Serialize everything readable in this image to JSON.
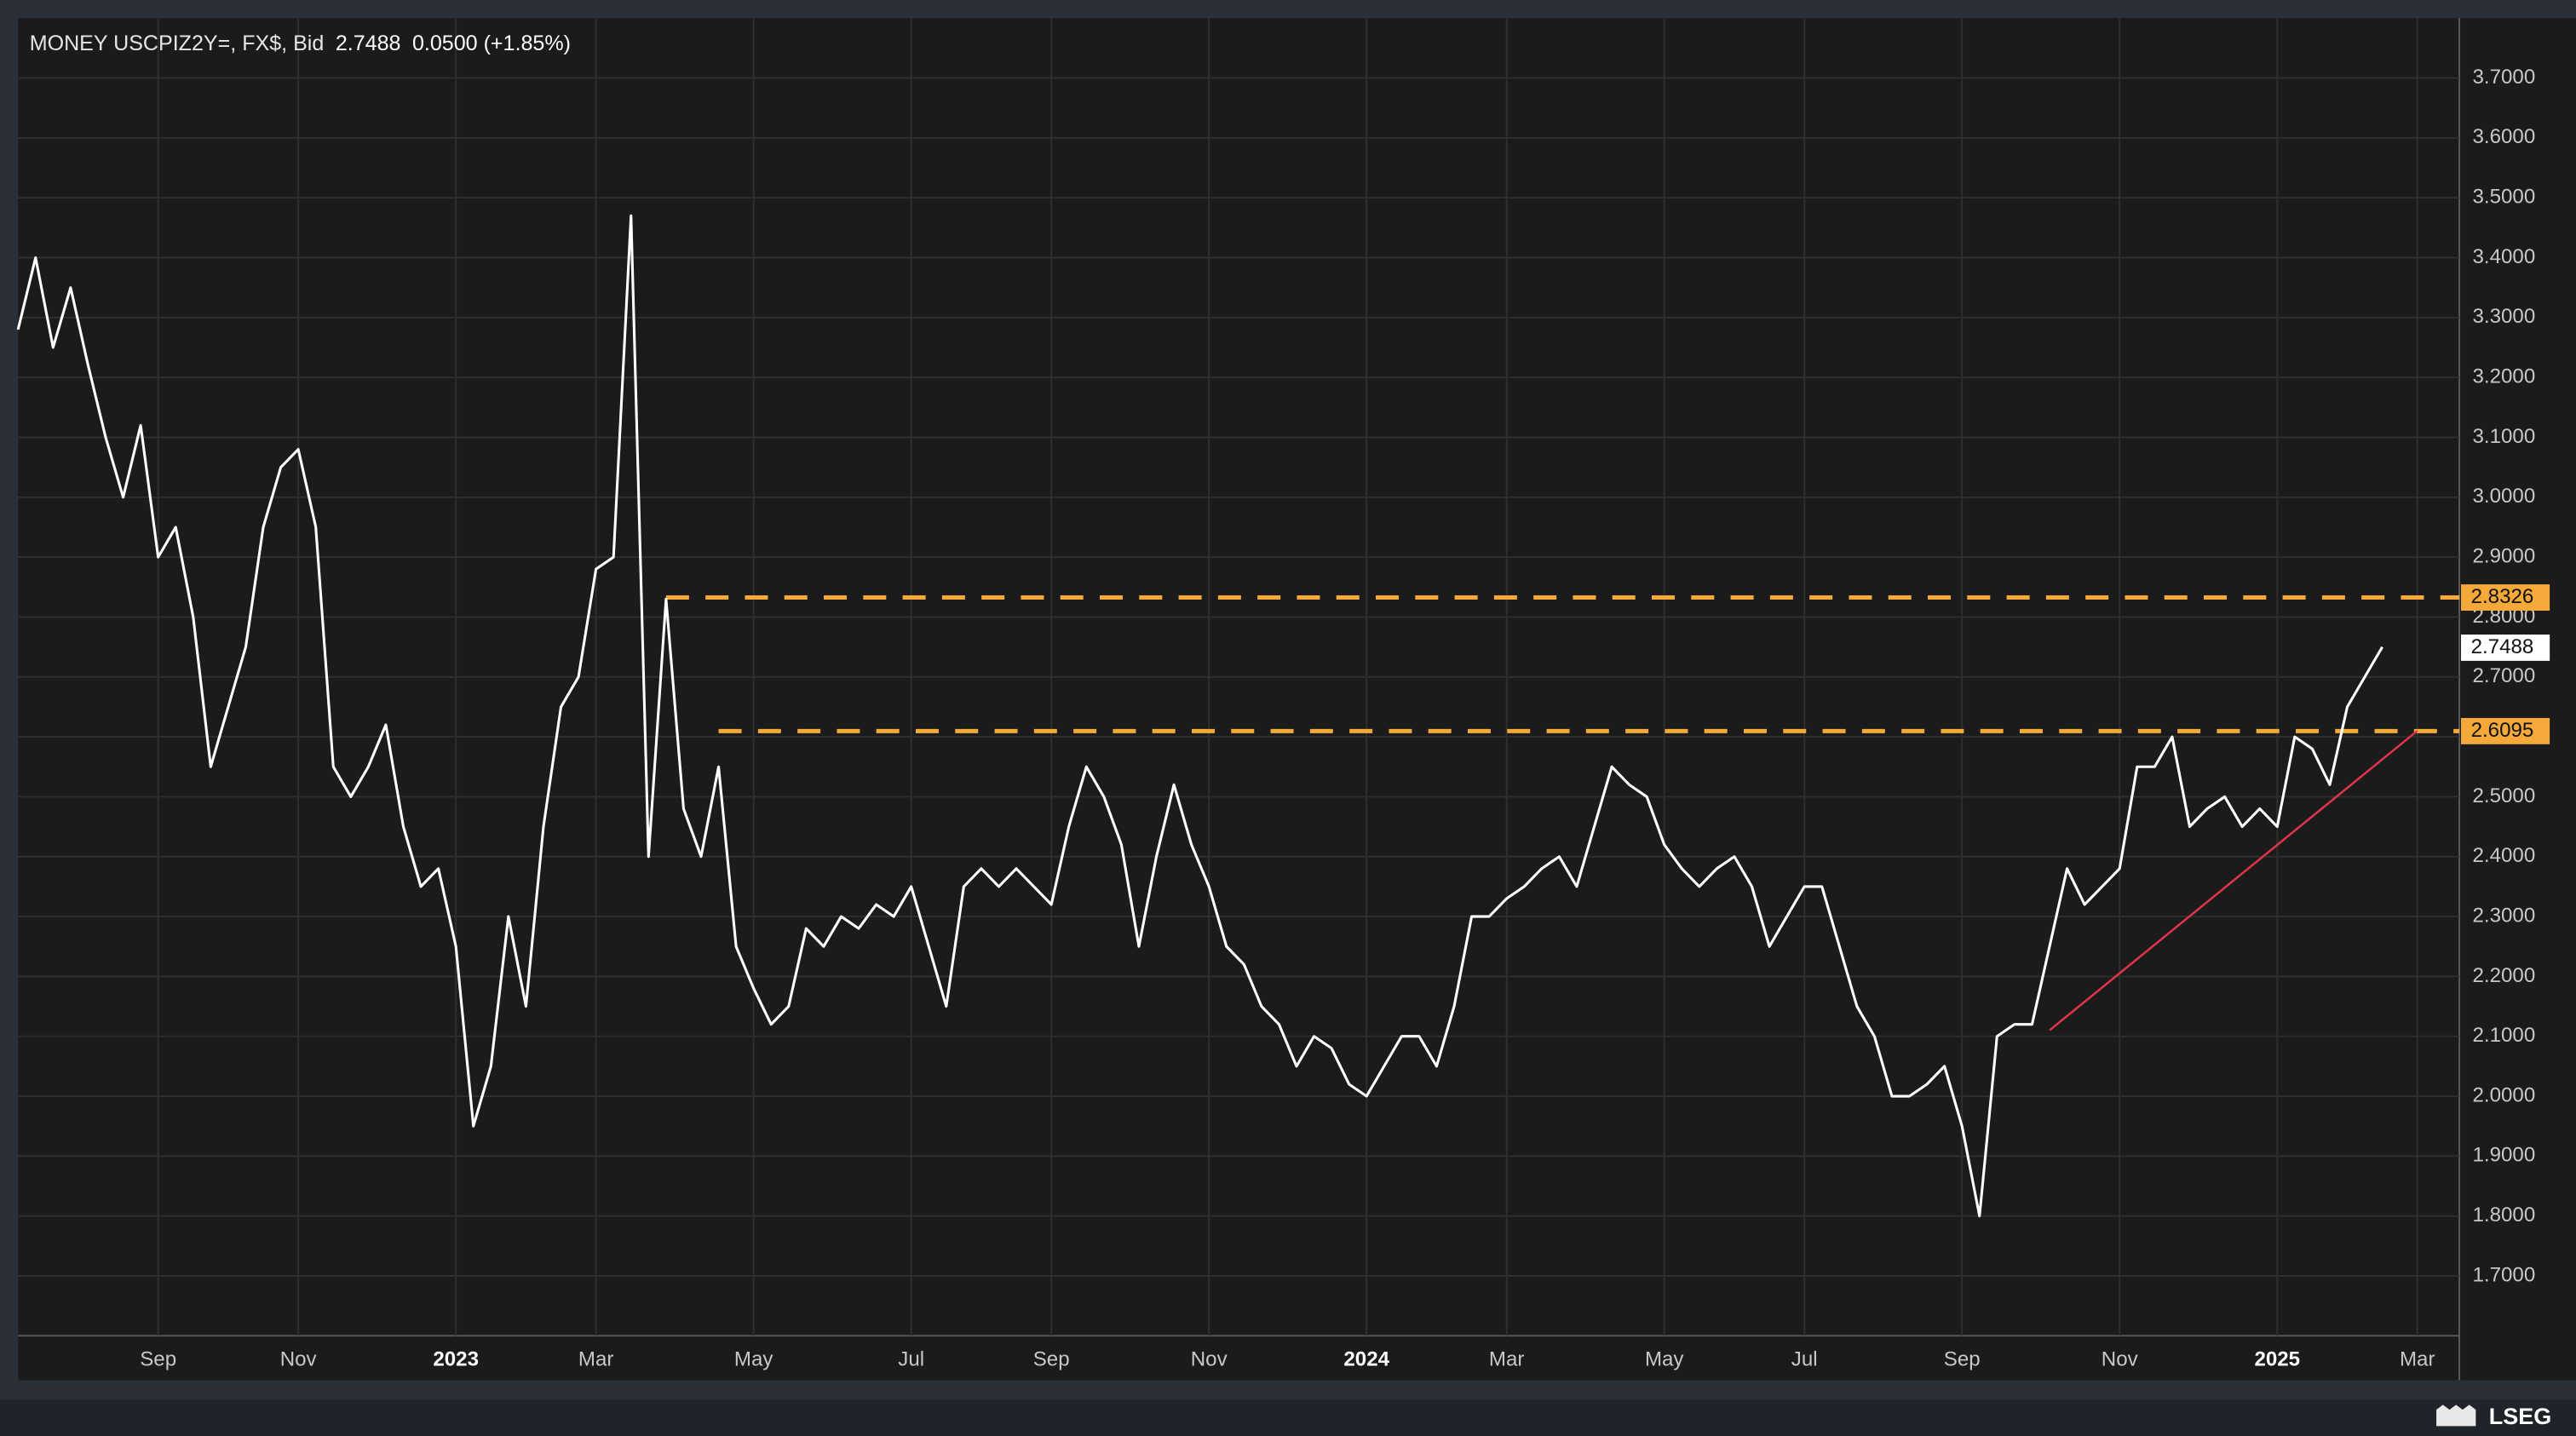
{
  "chart_data": {
    "type": "line",
    "series": [
      {
        "name": "MONEY USCPIZ2Y=, FX$, Bid",
        "color": "#ffffff",
        "values": [
          3.28,
          3.4,
          3.25,
          3.35,
          3.22,
          3.1,
          3.0,
          3.12,
          2.9,
          2.95,
          2.8,
          2.55,
          2.65,
          2.75,
          2.95,
          3.05,
          3.08,
          2.95,
          2.55,
          2.5,
          2.55,
          2.62,
          2.45,
          2.35,
          2.38,
          2.25,
          1.95,
          2.05,
          2.3,
          2.15,
          2.45,
          2.65,
          2.7,
          2.88,
          2.9,
          3.47,
          2.4,
          2.83,
          2.48,
          2.4,
          2.55,
          2.25,
          2.18,
          2.12,
          2.15,
          2.28,
          2.25,
          2.3,
          2.28,
          2.32,
          2.3,
          2.35,
          2.25,
          2.15,
          2.35,
          2.38,
          2.35,
          2.38,
          2.35,
          2.32,
          2.45,
          2.55,
          2.5,
          2.42,
          2.25,
          2.4,
          2.52,
          2.42,
          2.35,
          2.25,
          2.22,
          2.15,
          2.12,
          2.05,
          2.1,
          2.08,
          2.02,
          2.0,
          2.05,
          2.1,
          2.1,
          2.05,
          2.15,
          2.3,
          2.3,
          2.33,
          2.35,
          2.38,
          2.4,
          2.35,
          2.45,
          2.55,
          2.52,
          2.5,
          2.42,
          2.38,
          2.35,
          2.38,
          2.4,
          2.35,
          2.25,
          2.3,
          2.35,
          2.35,
          2.25,
          2.15,
          2.1,
          2.0,
          2.0,
          2.02,
          2.05,
          1.95,
          1.8,
          2.1,
          2.12,
          2.12,
          2.25,
          2.38,
          2.32,
          2.35,
          2.38,
          2.55,
          2.55,
          2.6,
          2.45,
          2.48,
          2.5,
          2.45,
          2.48,
          2.45,
          2.6,
          2.58,
          2.52,
          2.65,
          2.7,
          2.75,
          null,
          null,
          null
        ]
      }
    ],
    "categories": [
      null,
      null,
      null,
      null,
      null,
      null,
      null,
      null,
      "Sep",
      null,
      null,
      null,
      null,
      null,
      null,
      null,
      "Nov",
      null,
      null,
      null,
      null,
      null,
      null,
      null,
      null,
      "2023",
      null,
      null,
      null,
      null,
      null,
      null,
      null,
      "Mar",
      null,
      null,
      null,
      null,
      null,
      null,
      null,
      null,
      "May",
      null,
      null,
      null,
      null,
      null,
      null,
      null,
      null,
      "Jul",
      null,
      null,
      null,
      null,
      null,
      null,
      null,
      "Sep",
      null,
      null,
      null,
      null,
      null,
      null,
      null,
      null,
      "Nov",
      null,
      null,
      null,
      null,
      null,
      null,
      null,
      null,
      "2024",
      null,
      null,
      null,
      null,
      null,
      null,
      null,
      "Mar",
      null,
      null,
      null,
      null,
      null,
      null,
      null,
      null,
      "May",
      null,
      null,
      null,
      null,
      null,
      null,
      null,
      "Jul",
      null,
      null,
      null,
      null,
      null,
      null,
      null,
      null,
      "Sep",
      null,
      null,
      null,
      null,
      null,
      null,
      null,
      null,
      "Nov",
      null,
      null,
      null,
      null,
      null,
      null,
      null,
      null,
      "2025",
      null,
      null,
      null,
      null,
      null,
      null,
      null,
      "Mar",
      null
    ],
    "last_price": 2.7488,
    "change": "0.0500 (+1.85%)",
    "ylim": [
      1.6,
      3.8
    ],
    "yticks": [
      {
        "value": 1.7,
        "label": "1.7000"
      },
      {
        "value": 1.8,
        "label": "1.8000"
      },
      {
        "value": 1.9,
        "label": "1.9000"
      },
      {
        "value": 2.0,
        "label": "2.0000"
      },
      {
        "value": 2.1,
        "label": "2.1000"
      },
      {
        "value": 2.2,
        "label": "2.2000"
      },
      {
        "value": 2.3,
        "label": "2.3000"
      },
      {
        "value": 2.4,
        "label": "2.4000"
      },
      {
        "value": 2.5,
        "label": "2.5000"
      },
      {
        "value": 2.6,
        "label": "2.6000"
      },
      {
        "value": 2.7,
        "label": "2.7000"
      },
      {
        "value": 2.8,
        "label": "2.8000"
      },
      {
        "value": 2.9,
        "label": "2.9000"
      },
      {
        "value": 3.0,
        "label": "3.0000"
      },
      {
        "value": 3.1,
        "label": "3.1000"
      },
      {
        "value": 3.2,
        "label": "3.2000"
      },
      {
        "value": 3.3,
        "label": "3.3000"
      },
      {
        "value": 3.4,
        "label": "3.4000"
      },
      {
        "value": 3.5,
        "label": "3.5000"
      },
      {
        "value": 3.6,
        "label": "3.6000"
      },
      {
        "value": 3.7,
        "label": "3.7000"
      }
    ],
    "grid": true,
    "levels": [
      {
        "value": 2.8326,
        "start": 37,
        "color": "#f5a93a"
      },
      {
        "value": 2.6095,
        "start": 40,
        "color": "#f5a93a"
      }
    ],
    "trendline": {
      "x": [
        116,
        137
      ],
      "values": [
        2.11,
        2.61
      ],
      "color": "#e0344a"
    },
    "brand": "LSEG"
  }
}
